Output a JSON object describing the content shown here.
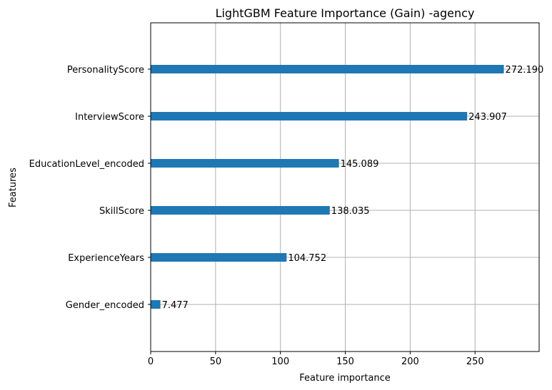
{
  "chart_data": {
    "type": "bar",
    "orientation": "horizontal",
    "title": "LightGBM Feature Importance (Gain) -agency",
    "xlabel": "Feature importance",
    "ylabel": "Features",
    "categories": [
      "PersonalityScore",
      "InterviewScore",
      "EducationLevel_encoded",
      "SkillScore",
      "ExperienceYears",
      "Gender_encoded"
    ],
    "values": [
      272.19,
      243.907,
      145.089,
      138.035,
      104.752,
      7.477
    ],
    "data_labels": [
      "272.190",
      "243.907",
      "145.089",
      "138.035",
      "104.752",
      "7.477"
    ],
    "xlim": [
      0,
      299.4
    ],
    "xticks": [
      0,
      50,
      100,
      150,
      200,
      250
    ],
    "xtick_labels": [
      "0",
      "50",
      "100",
      "150",
      "200",
      "250"
    ],
    "grid": true,
    "bar_color": "#1f77b4",
    "grid_color": "#b0b0b0"
  }
}
